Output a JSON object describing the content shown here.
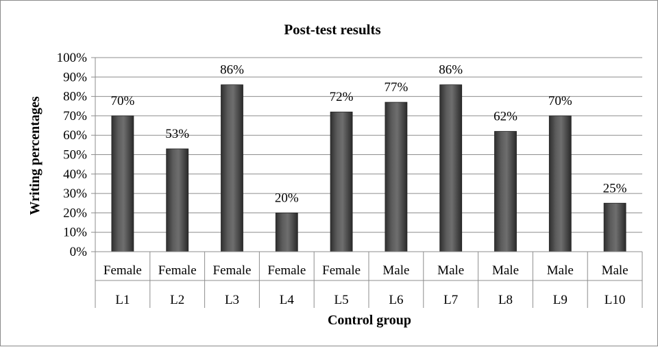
{
  "chart_data": {
    "type": "bar",
    "title": "Post-test results",
    "xlabel": "Control group",
    "ylabel": "Writing percentages",
    "ylim": [
      0,
      100
    ],
    "yticks": [
      "0%",
      "10%",
      "20%",
      "30%",
      "40%",
      "50%",
      "60%",
      "70%",
      "80%",
      "90%",
      "100%"
    ],
    "categories": [
      "L1",
      "L2",
      "L3",
      "L4",
      "L5",
      "L6",
      "L7",
      "L8",
      "L9",
      "L10"
    ],
    "groups": [
      "Female",
      "Female",
      "Female",
      "Female",
      "Female",
      "Male",
      "Male",
      "Male",
      "Male",
      "Male"
    ],
    "values": [
      70,
      53,
      86,
      20,
      72,
      77,
      86,
      62,
      70,
      25
    ],
    "data_labels": [
      "70%",
      "53%",
      "86%",
      "20%",
      "72%",
      "77%",
      "86%",
      "62%",
      "70%",
      "25%"
    ],
    "grid": true,
    "legend": "none",
    "bar_color": "#555555"
  }
}
